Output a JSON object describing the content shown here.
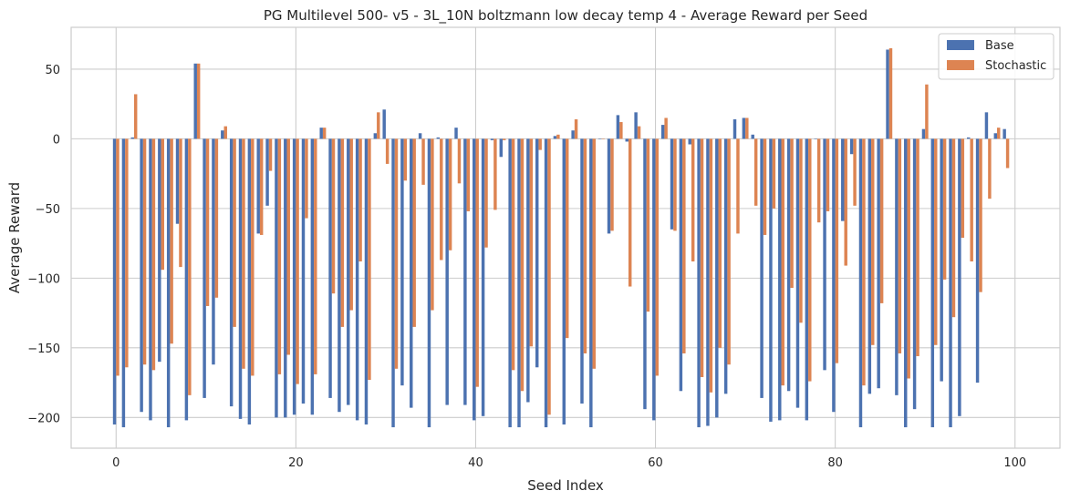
{
  "chart_data": {
    "type": "bar",
    "title": "PG Multilevel 500- v5 - 3L_10N boltzmann low decay temp 4 - Average Reward per Seed",
    "xlabel": "Seed Index",
    "ylabel": "Average Reward",
    "xlim": [
      -5,
      105
    ],
    "ylim": [
      -222,
      80
    ],
    "xticks": [
      0,
      20,
      40,
      60,
      80,
      100
    ],
    "yticks": [
      -200,
      -150,
      -100,
      -50,
      0,
      50
    ],
    "grid": true,
    "legend_position": "top-right",
    "x": [
      0,
      1,
      2,
      3,
      4,
      5,
      6,
      7,
      8,
      9,
      10,
      11,
      12,
      13,
      14,
      15,
      16,
      17,
      18,
      19,
      20,
      21,
      22,
      23,
      24,
      25,
      26,
      27,
      28,
      29,
      30,
      31,
      32,
      33,
      34,
      35,
      36,
      37,
      38,
      39,
      40,
      41,
      42,
      43,
      44,
      45,
      46,
      47,
      48,
      49,
      50,
      51,
      52,
      53,
      54,
      55,
      56,
      57,
      58,
      59,
      60,
      61,
      62,
      63,
      64,
      65,
      66,
      67,
      68,
      69,
      70,
      71,
      72,
      73,
      74,
      75,
      76,
      77,
      78,
      79,
      80,
      81,
      82,
      83,
      84,
      85,
      86,
      87,
      88,
      89,
      90,
      91,
      92,
      93,
      94,
      95,
      96,
      97,
      98,
      99
    ],
    "series": [
      {
        "name": "Base",
        "color": "#4c72b0",
        "values": [
          -205,
          -207,
          1,
          -196,
          -202,
          -160,
          -207,
          -61,
          -202,
          54,
          -186,
          -162,
          6,
          -192,
          -201,
          -205,
          -68,
          -48,
          -200,
          -200,
          -198,
          -190,
          -198,
          8,
          -186,
          -196,
          -191,
          -202,
          -205,
          4,
          21,
          -207,
          -177,
          -193,
          4,
          -207,
          1,
          -191,
          8,
          -191,
          -202,
          -199,
          -1,
          -13,
          -207,
          -207,
          -189,
          -164,
          -207,
          2,
          -205,
          6,
          -190,
          -207,
          0,
          -68,
          17,
          -2,
          19,
          -194,
          -202,
          10,
          -65,
          -181,
          -4,
          -207,
          -206,
          -200,
          -183,
          14,
          15,
          3,
          -186,
          -203,
          -202,
          -181,
          -193,
          -202,
          0,
          -166,
          -196,
          -59,
          -11,
          -207,
          -183,
          -179,
          64,
          -184,
          -207,
          -194,
          7,
          -207,
          -174,
          -207,
          -199,
          1,
          -175,
          19,
          4,
          7
        ]
      },
      {
        "name": "Stochastic",
        "color": "#dd8452",
        "values": [
          -170,
          -164,
          32,
          -162,
          -166,
          -94,
          -147,
          -92,
          -184,
          54,
          -120,
          -114,
          9,
          -135,
          -165,
          -170,
          -69,
          -23,
          -169,
          -155,
          -176,
          -57,
          -169,
          8,
          -111,
          -135,
          -123,
          -88,
          -173,
          19,
          -18,
          -165,
          -30,
          -135,
          -33,
          -123,
          -87,
          -80,
          -32,
          -52,
          -178,
          -78,
          -51,
          -1,
          -166,
          -181,
          -149,
          -8,
          -198,
          3,
          -143,
          14,
          -154,
          -165,
          0,
          -66,
          12,
          -106,
          9,
          -124,
          -170,
          15,
          -66,
          -154,
          -88,
          -171,
          -182,
          -150,
          -162,
          -68,
          15,
          -48,
          -69,
          -50,
          -177,
          -107,
          -132,
          -174,
          -60,
          -52,
          -161,
          -91,
          -48,
          -177,
          -148,
          -118,
          65,
          -154,
          -172,
          -156,
          39,
          -148,
          -101,
          -128,
          -71,
          -88,
          -110,
          -43,
          8,
          -21
        ]
      }
    ]
  }
}
